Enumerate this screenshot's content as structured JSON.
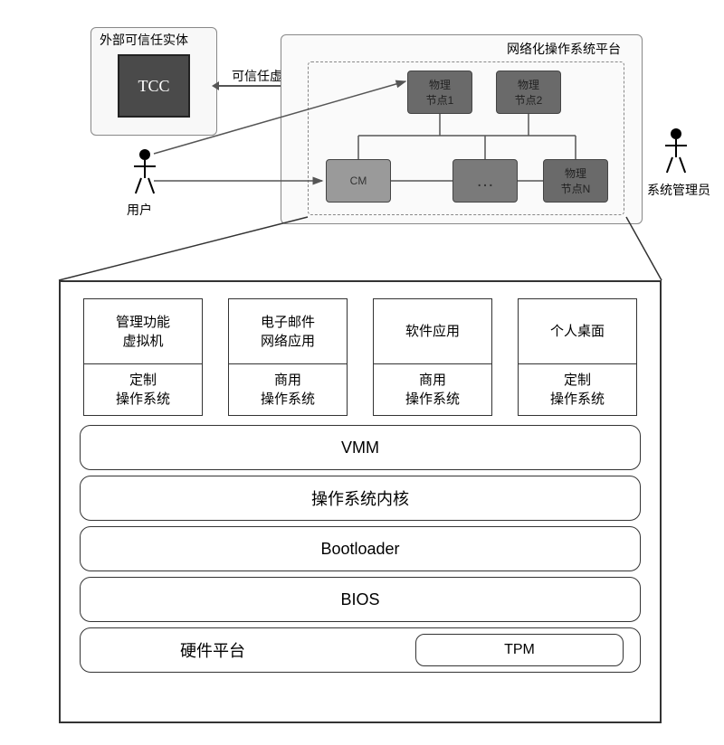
{
  "top": {
    "tcc_title": "外部可信任实体",
    "tcc_text": "TCC",
    "trust_label": "可信任虚拟运行平台",
    "platform_title": "网络化操作系统平台",
    "nodes": {
      "n1": "物理\n节点1",
      "n2": "物理\n节点2",
      "cm": "CM",
      "dots": "…",
      "nn": "物理\n节点N"
    },
    "user_label": "用户",
    "admin_label": "系统管理员"
  },
  "detail": {
    "vms": [
      {
        "top1": "管理功能",
        "top2": "虚拟机",
        "bot1": "定制",
        "bot2": "操作系统"
      },
      {
        "top1": "电子邮件",
        "top2": "网络应用",
        "bot1": "商用",
        "bot2": "操作系统"
      },
      {
        "top1": "软件应用",
        "top2": "",
        "bot1": "商用",
        "bot2": "操作系统"
      },
      {
        "top1": "个人桌面",
        "top2": "",
        "bot1": "定制",
        "bot2": "操作系统"
      }
    ],
    "layers": {
      "vmm": "VMM",
      "kernel": "操作系统内核",
      "bootloader": "Bootloader",
      "bios": "BIOS",
      "hw": "硬件平台",
      "tpm": "TPM"
    }
  },
  "colors": {
    "node_bg": "#7a7a7a",
    "box_border": "#333333"
  }
}
